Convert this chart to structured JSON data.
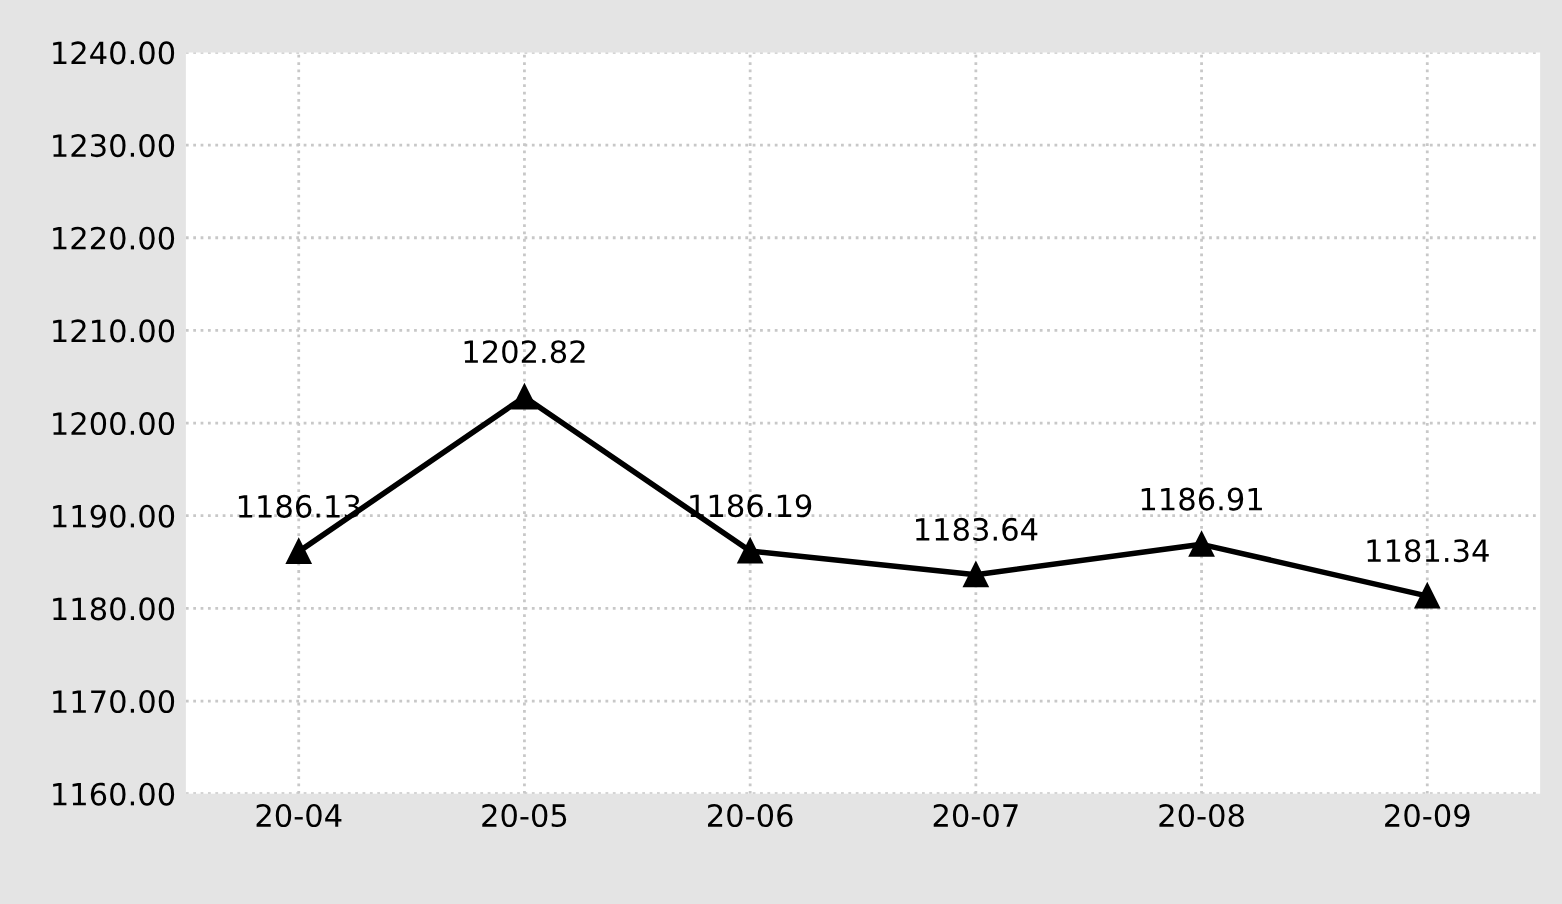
{
  "chart_data": {
    "type": "line",
    "categories": [
      "20-04",
      "20-05",
      "20-06",
      "20-07",
      "20-08",
      "20-09"
    ],
    "series": [
      {
        "color": "#000000",
        "values": [
          1186.13,
          1202.82,
          1186.19,
          1183.64,
          1186.91,
          1181.34
        ]
      }
    ],
    "ylim": [
      1160,
      1240
    ],
    "yticks": [
      {
        "value": 1160,
        "label": "1160.00"
      },
      {
        "value": 1170,
        "label": "1170.00"
      },
      {
        "value": 1180,
        "label": "1180.00"
      },
      {
        "value": 1190,
        "label": "1190.00"
      },
      {
        "value": 1200,
        "label": "1200.00"
      },
      {
        "value": 1210,
        "label": "1210.00"
      },
      {
        "value": 1220,
        "label": "1220.00"
      },
      {
        "value": 1230,
        "label": "1230.00"
      },
      {
        "value": 1240,
        "label": "1240.00"
      }
    ],
    "marker": "triangle",
    "line_style": "solid",
    "grid": true,
    "data_labels": true
  }
}
